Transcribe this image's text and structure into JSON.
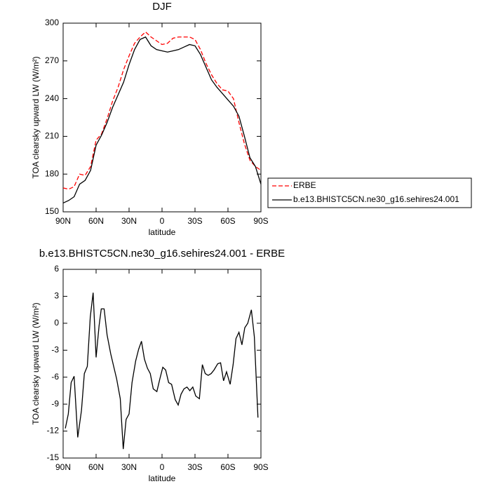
{
  "chart_data": [
    {
      "type": "line",
      "title": "DJF",
      "xlabel": "latitude",
      "ylabel": "TOA clearsky upward LW (W/m²)",
      "x": [
        90,
        85,
        80,
        75,
        70,
        65,
        60,
        55,
        50,
        45,
        40,
        35,
        30,
        25,
        20,
        15,
        10,
        5,
        0,
        -5,
        -10,
        -15,
        -20,
        -25,
        -30,
        -35,
        -40,
        -45,
        -50,
        -55,
        -60,
        -65,
        -70,
        -75,
        -80,
        -85,
        -90
      ],
      "series": [
        {
          "name": "ERBE",
          "color": "#ff0000",
          "line_style": "dashed",
          "values": [
            169,
            168,
            170,
            180,
            179,
            186,
            207,
            212,
            224,
            238,
            249,
            263,
            274,
            284,
            289,
            293,
            289,
            286,
            283,
            284,
            288,
            289,
            289,
            289,
            287,
            279,
            268,
            259,
            252,
            247,
            246,
            240,
            221,
            204,
            191,
            186,
            183
          ]
        },
        {
          "name": "b.e13.BHISTC5CN.ne30_g16.sehires24.001",
          "color": "#000000",
          "line_style": "solid",
          "values": [
            157,
            159,
            162,
            172,
            175,
            183,
            203,
            211,
            221,
            233,
            243,
            253,
            267,
            279,
            287,
            289,
            282,
            279,
            278,
            277,
            278,
            279,
            281,
            283,
            282,
            275,
            265,
            255,
            249,
            244,
            239,
            234,
            226,
            210,
            193,
            186,
            172
          ]
        }
      ],
      "xlim": [
        90,
        -90
      ],
      "xticks": [
        {
          "value": 90,
          "label": "90N"
        },
        {
          "value": 60,
          "label": "60N"
        },
        {
          "value": 30,
          "label": "30N"
        },
        0,
        {
          "value": -30,
          "label": "30S"
        },
        {
          "value": -60,
          "label": "60S"
        },
        {
          "value": -90,
          "label": "90S"
        }
      ],
      "ylim": [
        150,
        300
      ],
      "yticks": [
        150,
        180,
        210,
        240,
        270,
        300
      ],
      "legend": "right"
    },
    {
      "type": "line",
      "title": "b.e13.BHISTC5CN.ne30_g16.sehires24.001 - ERBE",
      "xlabel": "latitude",
      "ylabel": "TOA clearsky upward LW (W/m²)",
      "x": [
        88,
        85.3,
        82.7,
        80,
        76.7,
        73.3,
        70.7,
        68,
        65.3,
        62.7,
        60,
        57.3,
        55.3,
        52.7,
        50,
        46.7,
        44,
        41.3,
        38,
        35.3,
        32.7,
        30,
        27.3,
        24,
        21.3,
        18.7,
        16,
        13.3,
        10.7,
        8,
        4.7,
        2,
        -0.7,
        -3.3,
        -6,
        -8.7,
        -12,
        -14.7,
        -17.3,
        -20,
        -22.7,
        -25.3,
        -28,
        -30.7,
        -34,
        -36.7,
        -39.3,
        -42,
        -44.7,
        -47.3,
        -50.7,
        -53.3,
        -56,
        -58.7,
        -62,
        -64.7,
        -67.3,
        -70,
        -72.7,
        -75.3,
        -78,
        -81.3,
        -84,
        -87.3
      ],
      "series": [
        {
          "color": "#000000",
          "line_style": "solid",
          "values": [
            -11.7,
            -10.1,
            -6.6,
            -5.9,
            -12.7,
            -9.7,
            -5.6,
            -4.8,
            0.7,
            3.4,
            -3.8,
            -0.3,
            1.6,
            1.6,
            -1.3,
            -3.4,
            -4.8,
            -6.2,
            -8.4,
            -14,
            -10.7,
            -10.1,
            -6.6,
            -4.2,
            -2.9,
            -2.0,
            -4.0,
            -5.0,
            -5.6,
            -7.3,
            -7.6,
            -6.2,
            -4.9,
            -5.2,
            -6.6,
            -6.8,
            -8.5,
            -9.1,
            -7.9,
            -7.3,
            -7.1,
            -7.5,
            -7.1,
            -8.1,
            -8.4,
            -4.6,
            -5.6,
            -5.8,
            -5.6,
            -5.2,
            -4.5,
            -4.4,
            -6.4,
            -5.4,
            -6.8,
            -4.6,
            -1.7,
            -1.0,
            -2.4,
            -0.5,
            0,
            1.5,
            -1.5,
            -10.5
          ]
        }
      ],
      "xlim": [
        90,
        -90
      ],
      "xticks": [
        {
          "value": 90,
          "label": "90N"
        },
        {
          "value": 60,
          "label": "60N"
        },
        {
          "value": 30,
          "label": "30N"
        },
        0,
        {
          "value": -30,
          "label": "30S"
        },
        {
          "value": -60,
          "label": "60S"
        },
        {
          "value": -90,
          "label": "90S"
        }
      ],
      "ylim": [
        -15,
        6
      ],
      "yticks": [
        -15,
        -12,
        -9,
        -6,
        -3,
        0,
        3,
        6
      ]
    }
  ]
}
